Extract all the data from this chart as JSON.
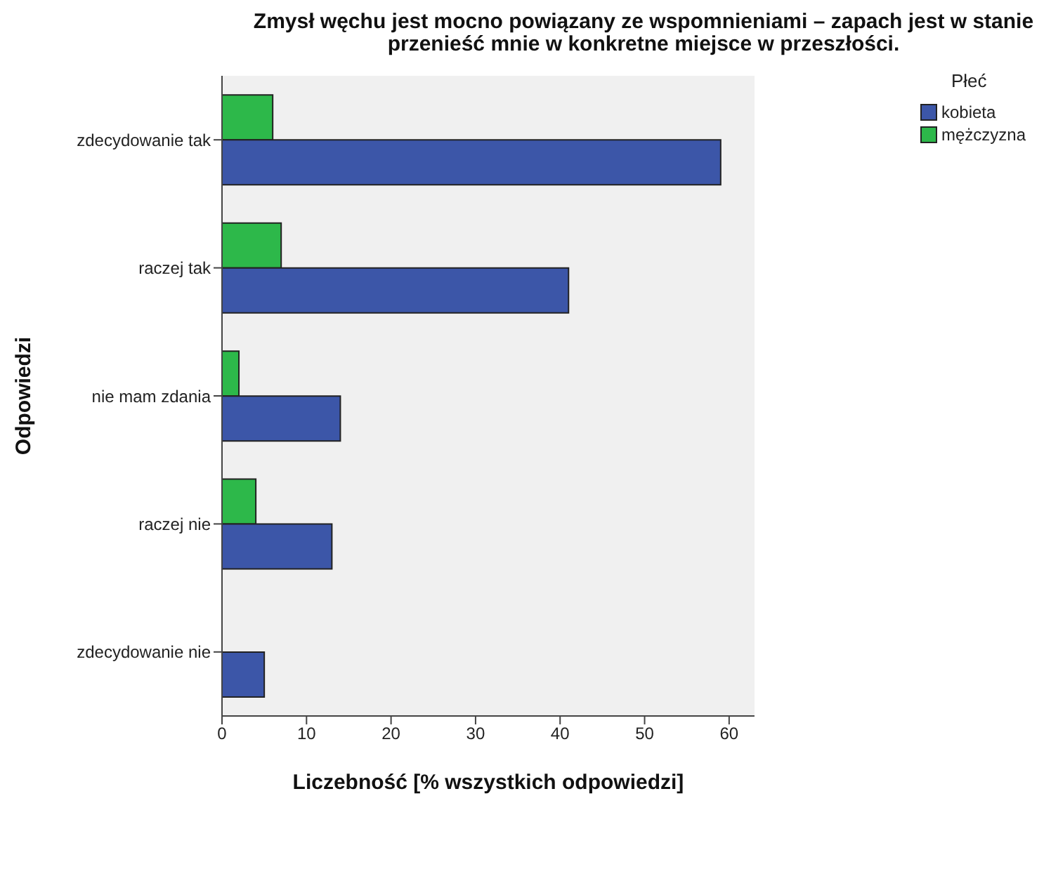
{
  "chart_data": {
    "type": "bar",
    "orientation": "horizontal",
    "title": "Zmysł węchu jest mocno powiązany ze wspomnieniami – zapach jest w stanie przenieść mnie w konkretne miejsce w przeszłości.",
    "xlabel": "Liczebność [% wszystkich odpowiedzi]",
    "ylabel": "Odpowiedzi",
    "legend_title": "Płeć",
    "legend": "top right",
    "grid": false,
    "categories": [
      "zdecydowanie tak",
      "raczej tak",
      "nie mam zdania",
      "raczej nie",
      "zdecydowanie nie"
    ],
    "series": [
      {
        "name": "kobieta",
        "color": "#3c56a8",
        "values": [
          59,
          41,
          14,
          13,
          5
        ]
      },
      {
        "name": "mężczyzna",
        "color": "#2db84a",
        "values": [
          6,
          7,
          2,
          4,
          null
        ]
      }
    ],
    "xlim": [
      0,
      63
    ],
    "xticks": [
      0,
      10,
      20,
      30,
      40,
      50,
      60
    ]
  }
}
